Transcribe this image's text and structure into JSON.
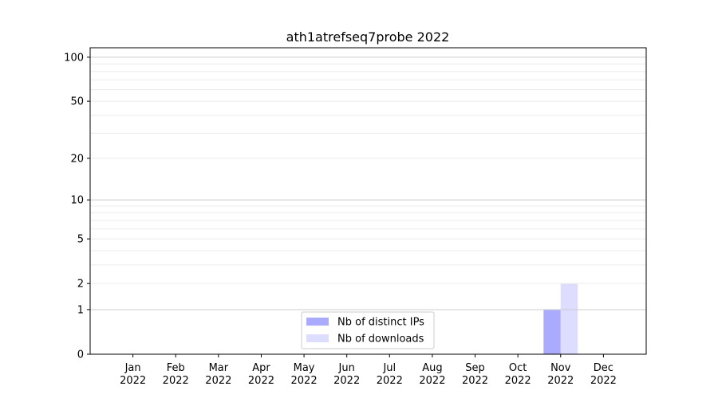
{
  "chart_data": {
    "type": "bar",
    "title": "ath1atrefseq7probe 2022",
    "xlabel": "",
    "ylabel": "",
    "y_scale": "log(1+y)",
    "ylim": [
      0,
      116
    ],
    "y_ticks": [
      0,
      1,
      2,
      5,
      10,
      20,
      50,
      100
    ],
    "grid": true,
    "legend_position": "bottom-center",
    "categories": [
      "Jan\n2022",
      "Feb\n2022",
      "Mar\n2022",
      "Apr\n2022",
      "May\n2022",
      "Jun\n2022",
      "Jul\n2022",
      "Aug\n2022",
      "Sep\n2022",
      "Oct\n2022",
      "Nov\n2022",
      "Dec\n2022"
    ],
    "series": [
      {
        "name": "Nb of distinct IPs",
        "color": "#aaaaff",
        "values": [
          0,
          0,
          0,
          0,
          0,
          0,
          0,
          0,
          0,
          0,
          1,
          0
        ]
      },
      {
        "name": "Nb of downloads",
        "color": "#ddddff",
        "values": [
          0,
          0,
          0,
          0,
          0,
          0,
          0,
          0,
          0,
          0,
          2,
          0
        ]
      }
    ]
  }
}
